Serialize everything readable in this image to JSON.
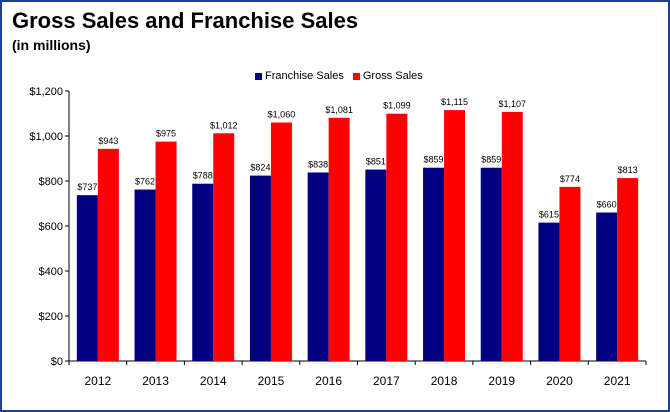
{
  "colors": {
    "franchise": "#000080",
    "gross": "#ff0000",
    "border": "#1f3d99"
  },
  "chart_data": {
    "type": "bar",
    "title": "Gross Sales and Franchise Sales",
    "subtitle": "(in millions)",
    "xlabel": "",
    "ylabel": "",
    "categories": [
      "2012",
      "2013",
      "2014",
      "2015",
      "2016",
      "2017",
      "2018",
      "2019",
      "2020",
      "2021"
    ],
    "series": [
      {
        "name": "Franchise Sales",
        "color": "#000080",
        "values": [
          737,
          762,
          788,
          824,
          838,
          851,
          859,
          859,
          615,
          660
        ],
        "labels": [
          "$737",
          "$762",
          "$788",
          "$824",
          "$838",
          "$851",
          "$859",
          "$859",
          "$615",
          "$660"
        ]
      },
      {
        "name": "Gross Sales",
        "color": "#ff0000",
        "values": [
          943,
          975,
          1012,
          1060,
          1081,
          1099,
          1115,
          1107,
          774,
          813
        ],
        "labels": [
          "$943",
          "$975",
          "$1,012",
          "$1,060",
          "$1,081",
          "$1,099",
          "$1,115",
          "$1,107",
          "$774",
          "$813"
        ]
      }
    ],
    "ylim": [
      0,
      1200
    ],
    "yticks": [
      0,
      200,
      400,
      600,
      800,
      1000,
      1200
    ],
    "ytick_labels": [
      "$0",
      "$200",
      "$400",
      "$600",
      "$800",
      "$1,000",
      "$1,200"
    ],
    "legend_position": "top-center",
    "grid": false
  }
}
